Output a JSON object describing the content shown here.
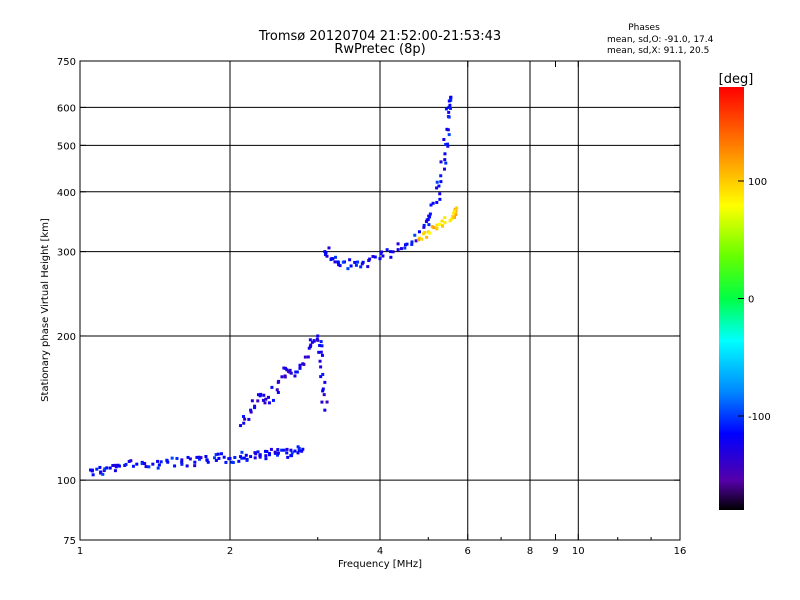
{
  "chart_data": {
    "type": "scatter",
    "title": "Tromsø 20120704 21:52:00-21:53:43",
    "subtitle": "RwPretec (8p)",
    "xlabel": "Frequency [MHz]",
    "ylabel": "Stationary phase Virtual Height [km]",
    "x_scale": "log",
    "y_scale": "log",
    "xlim": [
      1,
      16
    ],
    "ylim": [
      75,
      750
    ],
    "x_ticks": [
      1,
      2,
      4,
      6,
      8,
      9,
      10,
      16
    ],
    "x_tick_labels": [
      "1",
      "2",
      "4",
      "6",
      "8",
      "9",
      "10",
      "16"
    ],
    "x_major_grid": [
      2,
      4,
      6,
      8,
      10
    ],
    "y_ticks": [
      75,
      100,
      200,
      300,
      400,
      500,
      600,
      750
    ],
    "y_tick_labels": [
      "75",
      "100",
      "200",
      "300",
      "400",
      "500",
      "600",
      "750"
    ],
    "y_major_grid": [
      100,
      200,
      300,
      400,
      500,
      600
    ],
    "grid": true,
    "legend": {
      "heading": "Phases",
      "lines": [
        "mean, sd,O: -91.0, 17.4",
        "mean, sd,X:  91.1, 20.5"
      ]
    },
    "colorbar": {
      "label": "[deg]",
      "range": [
        -180,
        180
      ],
      "ticks": [
        100,
        0,
        -100
      ],
      "tick_labels": [
        "100",
        "0",
        "-100"
      ]
    },
    "series": [
      {
        "name": "O-mode low trace",
        "description": "Near-horizontal trace from ~1.05 to ~2.8 MHz rising from ~105 to ~115 km",
        "points": [
          [
            1.05,
            105
          ],
          [
            1.1,
            104
          ],
          [
            1.15,
            106
          ],
          [
            1.2,
            107
          ],
          [
            1.3,
            108
          ],
          [
            1.4,
            108
          ],
          [
            1.5,
            109
          ],
          [
            1.6,
            109
          ],
          [
            1.7,
            109
          ],
          [
            1.8,
            110
          ],
          [
            1.9,
            111
          ],
          [
            2.0,
            111
          ],
          [
            2.1,
            112
          ],
          [
            2.2,
            112
          ],
          [
            2.3,
            113
          ],
          [
            2.4,
            113
          ],
          [
            2.5,
            114
          ],
          [
            2.6,
            114
          ],
          [
            2.7,
            115
          ],
          [
            2.8,
            116
          ]
        ],
        "phase_deg": -100
      },
      {
        "name": "O-mode spread near 2.3-3.1 MHz",
        "points": [
          [
            2.1,
            130
          ],
          [
            2.2,
            140
          ],
          [
            2.3,
            150
          ],
          [
            2.4,
            145
          ],
          [
            2.5,
            160
          ],
          [
            2.6,
            170
          ],
          [
            2.7,
            165
          ],
          [
            2.8,
            175
          ],
          [
            2.9,
            190
          ],
          [
            3.0,
            200
          ],
          [
            3.05,
            185
          ],
          [
            3.1,
            160
          ],
          [
            3.1,
            140
          ]
        ],
        "phase_deg": -110
      },
      {
        "name": "F-layer trace",
        "points": [
          [
            3.1,
            300
          ],
          [
            3.2,
            290
          ],
          [
            3.3,
            285
          ],
          [
            3.5,
            280
          ],
          [
            3.7,
            285
          ],
          [
            4.0,
            290
          ],
          [
            4.2,
            300
          ],
          [
            4.5,
            310
          ],
          [
            4.8,
            330
          ],
          [
            5.0,
            350
          ],
          [
            5.2,
            380
          ],
          [
            5.3,
            420
          ],
          [
            5.4,
            480
          ],
          [
            5.45,
            540
          ],
          [
            5.5,
            600
          ],
          [
            5.55,
            630
          ]
        ],
        "phase_deg": -100
      },
      {
        "name": "X-mode trace",
        "points": [
          [
            4.8,
            320
          ],
          [
            5.0,
            330
          ],
          [
            5.2,
            335
          ],
          [
            5.4,
            345
          ],
          [
            5.6,
            355
          ],
          [
            5.7,
            370
          ]
        ],
        "phase_deg": 100
      }
    ]
  }
}
